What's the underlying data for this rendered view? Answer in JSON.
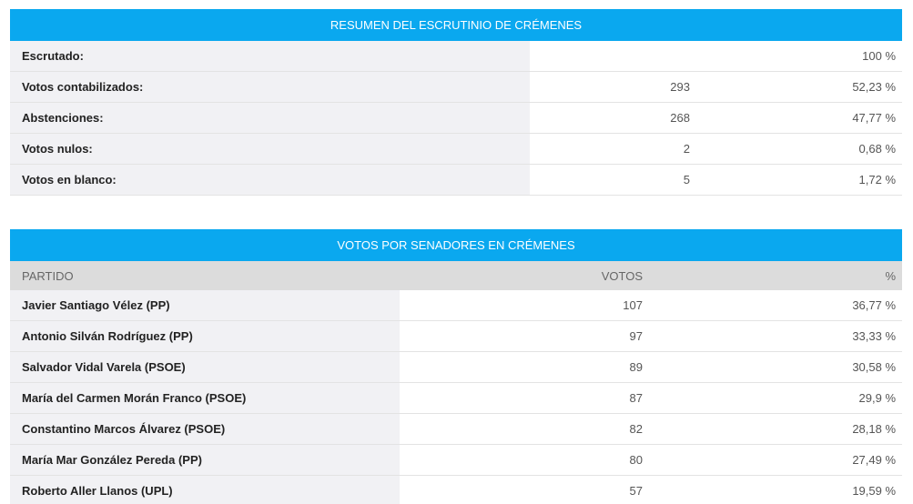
{
  "summary": {
    "title": "RESUMEN DEL ESCRUTINIO DE CRÉMENES",
    "rows": [
      {
        "label": "Escrutado:",
        "votes": "",
        "pct": "100 %"
      },
      {
        "label": "Votos contabilizados:",
        "votes": "293",
        "pct": "52,23 %"
      },
      {
        "label": "Abstenciones:",
        "votes": "268",
        "pct": "47,77 %"
      },
      {
        "label": "Votos nulos:",
        "votes": "2",
        "pct": "0,68 %"
      },
      {
        "label": "Votos en blanco:",
        "votes": "5",
        "pct": "1,72 %"
      }
    ]
  },
  "senators": {
    "title": "VOTOS POR SENADORES EN CRÉMENES",
    "headers": {
      "party": "PARTIDO",
      "votes": "VOTOS",
      "pct": "%"
    },
    "rows": [
      {
        "name": "Javier Santiago Vélez (PP)",
        "votes": "107",
        "pct": "36,77 %"
      },
      {
        "name": "Antonio Silván Rodríguez (PP)",
        "votes": "97",
        "pct": "33,33 %"
      },
      {
        "name": "Salvador Vidal Varela (PSOE)",
        "votes": "89",
        "pct": "30,58 %"
      },
      {
        "name": "María del Carmen Morán Franco (PSOE)",
        "votes": "87",
        "pct": "29,9 %"
      },
      {
        "name": "Constantino Marcos Álvarez (PSOE)",
        "votes": "82",
        "pct": "28,18 %"
      },
      {
        "name": "María Mar González Pereda (PP)",
        "votes": "80",
        "pct": "27,49 %"
      },
      {
        "name": "Roberto Aller Llanos (UPL)",
        "votes": "57",
        "pct": "19,59 %"
      }
    ]
  }
}
